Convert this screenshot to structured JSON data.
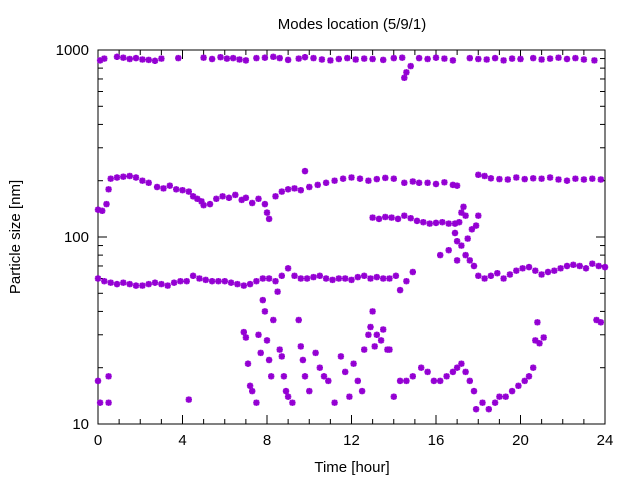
{
  "chart_data": {
    "type": "scatter",
    "title": "Modes location (5/9/1)",
    "xlabel": "Time [hour]",
    "ylabel": "Particle size [nm]",
    "xlim": [
      0,
      24
    ],
    "ylim": [
      10,
      1000
    ],
    "yscale": "log",
    "xticks": [
      "0",
      "4",
      "8",
      "12",
      "16",
      "20",
      "24"
    ],
    "yticks": [
      "10",
      "100",
      "1000"
    ],
    "grid": false,
    "legend": "none",
    "marker": "asterisk",
    "color": "#9400d3",
    "series": [
      {
        "points": [
          [
            0.1,
            880
          ],
          [
            0.3,
            900
          ],
          [
            0.9,
            920
          ],
          [
            1.2,
            910
          ],
          [
            1.5,
            895
          ],
          [
            1.8,
            905
          ],
          [
            2.1,
            890
          ],
          [
            2.4,
            885
          ],
          [
            2.7,
            875
          ],
          [
            3.0,
            900
          ],
          [
            3.8,
            905
          ],
          [
            5.0,
            910
          ],
          [
            5.4,
            895
          ],
          [
            5.8,
            915
          ],
          [
            6.1,
            900
          ],
          [
            6.4,
            905
          ],
          [
            6.7,
            890
          ],
          [
            7.0,
            880
          ],
          [
            7.5,
            905
          ],
          [
            7.9,
            910
          ],
          [
            8.3,
            920
          ],
          [
            8.6,
            905
          ],
          [
            9.0,
            885
          ],
          [
            9.5,
            900
          ],
          [
            9.8,
            915
          ],
          [
            10.2,
            905
          ],
          [
            10.6,
            890
          ],
          [
            11.0,
            880
          ],
          [
            11.4,
            895
          ],
          [
            11.8,
            905
          ],
          [
            12.2,
            890
          ],
          [
            12.6,
            900
          ],
          [
            13.0,
            895
          ],
          [
            13.5,
            885
          ],
          [
            14.0,
            905
          ],
          [
            14.4,
            910
          ],
          [
            14.5,
            710
          ],
          [
            14.6,
            760
          ],
          [
            14.8,
            820
          ],
          [
            15.2,
            905
          ],
          [
            15.6,
            895
          ],
          [
            16.0,
            910
          ],
          [
            16.4,
            900
          ],
          [
            16.8,
            880
          ],
          [
            17.6,
            905
          ],
          [
            18.0,
            895
          ],
          [
            18.4,
            890
          ],
          [
            18.8,
            905
          ],
          [
            19.2,
            880
          ],
          [
            19.6,
            900
          ],
          [
            20.0,
            895
          ],
          [
            20.6,
            905
          ],
          [
            21.0,
            890
          ],
          [
            21.4,
            900
          ],
          [
            21.8,
            910
          ],
          [
            22.2,
            895
          ],
          [
            22.6,
            905
          ],
          [
            23.0,
            890
          ],
          [
            23.5,
            880
          ]
        ]
      },
      {
        "points": [
          [
            0.0,
            140
          ],
          [
            0.2,
            138
          ],
          [
            0.4,
            150
          ],
          [
            0.5,
            180
          ],
          [
            0.6,
            205
          ],
          [
            0.9,
            208
          ],
          [
            1.2,
            210
          ],
          [
            1.5,
            212
          ],
          [
            1.8,
            208
          ],
          [
            2.1,
            200
          ],
          [
            2.4,
            195
          ],
          [
            2.8,
            185
          ],
          [
            3.1,
            182
          ],
          [
            3.4,
            188
          ],
          [
            3.7,
            180
          ],
          [
            4.0,
            178
          ],
          [
            4.3,
            175
          ],
          [
            4.5,
            165
          ],
          [
            4.7,
            160
          ],
          [
            4.9,
            155
          ],
          [
            5.0,
            148
          ],
          [
            5.3,
            150
          ],
          [
            5.6,
            160
          ],
          [
            5.9,
            165
          ],
          [
            6.2,
            162
          ],
          [
            6.5,
            168
          ],
          [
            6.8,
            158
          ],
          [
            7.0,
            162
          ],
          [
            7.3,
            152
          ],
          [
            7.6,
            160
          ],
          [
            7.9,
            150
          ],
          [
            8.0,
            135
          ],
          [
            8.1,
            125
          ],
          [
            8.4,
            165
          ],
          [
            8.7,
            175
          ],
          [
            9.0,
            180
          ],
          [
            9.3,
            182
          ],
          [
            9.6,
            178
          ],
          [
            9.8,
            225
          ],
          [
            10.0,
            185
          ],
          [
            10.4,
            190
          ],
          [
            10.8,
            195
          ],
          [
            11.2,
            200
          ],
          [
            11.6,
            205
          ],
          [
            12.0,
            208
          ],
          [
            12.4,
            205
          ],
          [
            12.8,
            200
          ],
          [
            13.2,
            204
          ],
          [
            13.6,
            207
          ],
          [
            14.0,
            205
          ],
          [
            14.5,
            195
          ],
          [
            14.9,
            198
          ],
          [
            15.2,
            195
          ],
          [
            15.6,
            195
          ],
          [
            16.0,
            192
          ],
          [
            16.4,
            196
          ],
          [
            16.8,
            190
          ],
          [
            17.0,
            188
          ],
          [
            18.0,
            215
          ],
          [
            18.3,
            212
          ],
          [
            18.6,
            206
          ],
          [
            19.0,
            204
          ],
          [
            19.4,
            203
          ],
          [
            19.8,
            208
          ],
          [
            20.2,
            204
          ],
          [
            20.6,
            206
          ],
          [
            21.0,
            205
          ],
          [
            21.4,
            208
          ],
          [
            21.8,
            203
          ],
          [
            22.2,
            200
          ],
          [
            22.6,
            205
          ],
          [
            23.0,
            203
          ],
          [
            23.4,
            205
          ],
          [
            23.8,
            203
          ]
        ]
      },
      {
        "points": [
          [
            13.0,
            127
          ],
          [
            13.3,
            125
          ],
          [
            13.6,
            128
          ],
          [
            13.9,
            127
          ],
          [
            14.2,
            125
          ],
          [
            14.5,
            130
          ],
          [
            14.8,
            126
          ],
          [
            15.1,
            122
          ],
          [
            15.4,
            120
          ],
          [
            15.7,
            118
          ],
          [
            16.0,
            119
          ],
          [
            16.3,
            120
          ],
          [
            16.6,
            118
          ],
          [
            16.9,
            118
          ],
          [
            17.1,
            120
          ],
          [
            17.2,
            135
          ],
          [
            17.3,
            145
          ],
          [
            17.4,
            130
          ],
          [
            16.9,
            105
          ],
          [
            17.0,
            95
          ],
          [
            17.2,
            90
          ],
          [
            17.5,
            98
          ],
          [
            17.7,
            110
          ],
          [
            17.9,
            115
          ],
          [
            18.0,
            130
          ],
          [
            16.2,
            80
          ],
          [
            16.6,
            85
          ],
          [
            17.0,
            75
          ],
          [
            17.4,
            80
          ],
          [
            17.6,
            75
          ],
          [
            17.8,
            70
          ]
        ]
      },
      {
        "points": [
          [
            0.0,
            60
          ],
          [
            0.3,
            58
          ],
          [
            0.6,
            57
          ],
          [
            0.9,
            56
          ],
          [
            1.2,
            57
          ],
          [
            1.5,
            56
          ],
          [
            1.8,
            55
          ],
          [
            2.1,
            55
          ],
          [
            2.4,
            56
          ],
          [
            2.7,
            57
          ],
          [
            3.0,
            56
          ],
          [
            3.3,
            55
          ],
          [
            3.6,
            57
          ],
          [
            3.9,
            58
          ],
          [
            4.2,
            58
          ],
          [
            4.5,
            62
          ],
          [
            4.8,
            60
          ],
          [
            5.1,
            59
          ],
          [
            5.4,
            58
          ],
          [
            5.7,
            58
          ],
          [
            6.0,
            58
          ],
          [
            6.3,
            57
          ],
          [
            6.6,
            56
          ],
          [
            6.9,
            55
          ],
          [
            7.2,
            56
          ],
          [
            7.5,
            58
          ],
          [
            7.8,
            60
          ],
          [
            8.1,
            60
          ],
          [
            8.4,
            58
          ],
          [
            8.7,
            62
          ],
          [
            9.0,
            68
          ],
          [
            9.3,
            62
          ],
          [
            9.6,
            60
          ],
          [
            9.9,
            60
          ],
          [
            10.2,
            61
          ],
          [
            10.5,
            62
          ],
          [
            10.8,
            60
          ],
          [
            11.1,
            59
          ],
          [
            11.4,
            60
          ],
          [
            11.7,
            60
          ],
          [
            12.0,
            59
          ],
          [
            12.3,
            61
          ],
          [
            12.6,
            62
          ],
          [
            12.9,
            60
          ],
          [
            13.2,
            61
          ],
          [
            13.5,
            60
          ],
          [
            13.8,
            60
          ],
          [
            14.1,
            62
          ],
          [
            14.3,
            52
          ],
          [
            14.6,
            58
          ],
          [
            14.9,
            65
          ],
          [
            18.0,
            62
          ],
          [
            18.3,
            60
          ],
          [
            18.6,
            62
          ],
          [
            18.9,
            64
          ],
          [
            19.2,
            60
          ],
          [
            19.5,
            63
          ],
          [
            19.8,
            66
          ],
          [
            20.1,
            68
          ],
          [
            20.4,
            69
          ],
          [
            20.7,
            66
          ],
          [
            21.0,
            63
          ],
          [
            21.3,
            65
          ],
          [
            21.6,
            66
          ],
          [
            21.9,
            68
          ],
          [
            22.2,
            70
          ],
          [
            22.5,
            71
          ],
          [
            22.8,
            70
          ],
          [
            23.1,
            68
          ],
          [
            23.4,
            72
          ],
          [
            23.7,
            70
          ],
          [
            24.0,
            69
          ]
        ]
      },
      {
        "points": [
          [
            0.0,
            17
          ],
          [
            0.1,
            13
          ],
          [
            0.5,
            18
          ],
          [
            0.5,
            13
          ],
          [
            4.3,
            13.5
          ],
          [
            6.9,
            31
          ],
          [
            7.0,
            29
          ],
          [
            7.1,
            21
          ],
          [
            7.2,
            16
          ],
          [
            7.3,
            15
          ],
          [
            7.5,
            13
          ],
          [
            7.6,
            30
          ],
          [
            7.7,
            24
          ],
          [
            7.8,
            46
          ],
          [
            7.9,
            40
          ],
          [
            8.0,
            28
          ],
          [
            8.1,
            22
          ],
          [
            8.2,
            18
          ],
          [
            8.3,
            36
          ],
          [
            8.5,
            51
          ],
          [
            8.6,
            25
          ],
          [
            8.7,
            23
          ],
          [
            8.8,
            18
          ],
          [
            8.9,
            15
          ],
          [
            9.0,
            14
          ],
          [
            9.2,
            13
          ],
          [
            9.5,
            36
          ],
          [
            9.6,
            26
          ],
          [
            9.7,
            22
          ],
          [
            9.8,
            18
          ],
          [
            10.0,
            15
          ],
          [
            10.3,
            24
          ],
          [
            10.5,
            20
          ],
          [
            10.7,
            18
          ],
          [
            10.9,
            17
          ],
          [
            11.2,
            13
          ],
          [
            11.5,
            23
          ],
          [
            11.7,
            19
          ],
          [
            11.9,
            14
          ],
          [
            12.1,
            21
          ],
          [
            12.3,
            17
          ],
          [
            12.5,
            15
          ],
          [
            12.6,
            25
          ],
          [
            12.8,
            30
          ],
          [
            12.9,
            33
          ],
          [
            13.0,
            40
          ],
          [
            13.1,
            26
          ],
          [
            13.2,
            30
          ],
          [
            13.4,
            28
          ],
          [
            13.5,
            32
          ],
          [
            13.7,
            25
          ],
          [
            13.8,
            25
          ],
          [
            14.0,
            14
          ],
          [
            14.3,
            17
          ],
          [
            14.6,
            17
          ],
          [
            14.9,
            18
          ],
          [
            15.3,
            20
          ],
          [
            15.6,
            19
          ],
          [
            15.9,
            17
          ],
          [
            16.2,
            17
          ],
          [
            16.5,
            18
          ],
          [
            16.8,
            19
          ],
          [
            17.0,
            20
          ],
          [
            17.2,
            21
          ],
          [
            17.4,
            19
          ],
          [
            17.6,
            17
          ],
          [
            17.8,
            15
          ],
          [
            17.9,
            12
          ],
          [
            18.2,
            13
          ],
          [
            18.5,
            12
          ],
          [
            18.8,
            13
          ],
          [
            19.0,
            14
          ],
          [
            19.3,
            14
          ],
          [
            19.6,
            15
          ],
          [
            19.9,
            16
          ],
          [
            20.2,
            17
          ],
          [
            20.4,
            18
          ],
          [
            20.6,
            20
          ],
          [
            20.7,
            28
          ],
          [
            20.9,
            27
          ],
          [
            21.1,
            29
          ],
          [
            20.8,
            35
          ],
          [
            23.6,
            36
          ],
          [
            23.8,
            35
          ]
        ]
      }
    ]
  }
}
